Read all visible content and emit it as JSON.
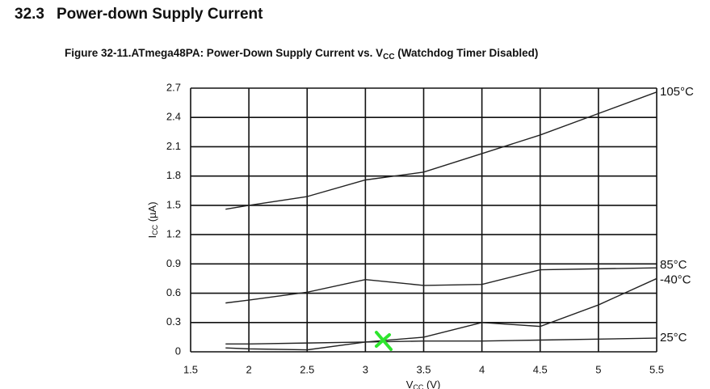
{
  "section": {
    "number": "32.3",
    "title": "Power-down Supply Current"
  },
  "chart_data": {
    "type": "line",
    "title": [
      "Figure 32-11.ATmega48PA: Power-Down Supply Current vs. V",
      "CC",
      " (Watchdog Timer Disabled)"
    ],
    "y_label": [
      "I",
      "CC",
      " (µA)"
    ],
    "x_label": [
      "V",
      "CC",
      " (V)"
    ],
    "x": [
      1.8,
      2.0,
      2.5,
      3.0,
      3.5,
      4.0,
      4.5,
      5.0,
      5.5
    ],
    "series": [
      {
        "name": "105°C",
        "color": "#222222",
        "values": [
          1.46,
          1.5,
          1.59,
          1.76,
          1.84,
          2.03,
          2.22,
          2.44,
          2.66
        ]
      },
      {
        "name": "85°C",
        "color": "#222222",
        "values": [
          0.5,
          0.53,
          0.61,
          0.74,
          0.68,
          0.69,
          0.84,
          0.85,
          0.86
        ]
      },
      {
        "name": "-40°C",
        "color": "#222222",
        "values": [
          0.04,
          0.03,
          0.02,
          0.1,
          0.15,
          0.3,
          0.26,
          0.48,
          0.75
        ]
      },
      {
        "name": "25°C",
        "color": "#222222",
        "values": [
          0.08,
          0.08,
          0.09,
          0.1,
          0.11,
          0.11,
          0.12,
          0.13,
          0.14
        ]
      }
    ],
    "xlim": [
      1.5,
      5.5
    ],
    "xticks": [
      1.5,
      2,
      2.5,
      3,
      3.5,
      4,
      4.5,
      5,
      5.5
    ],
    "ylim": [
      0,
      2.7
    ],
    "yticks": [
      0,
      0.3,
      0.6,
      0.9,
      1.2,
      1.5,
      1.8,
      2.1,
      2.4,
      2.7
    ],
    "grid": true,
    "legend": "line-end"
  }
}
